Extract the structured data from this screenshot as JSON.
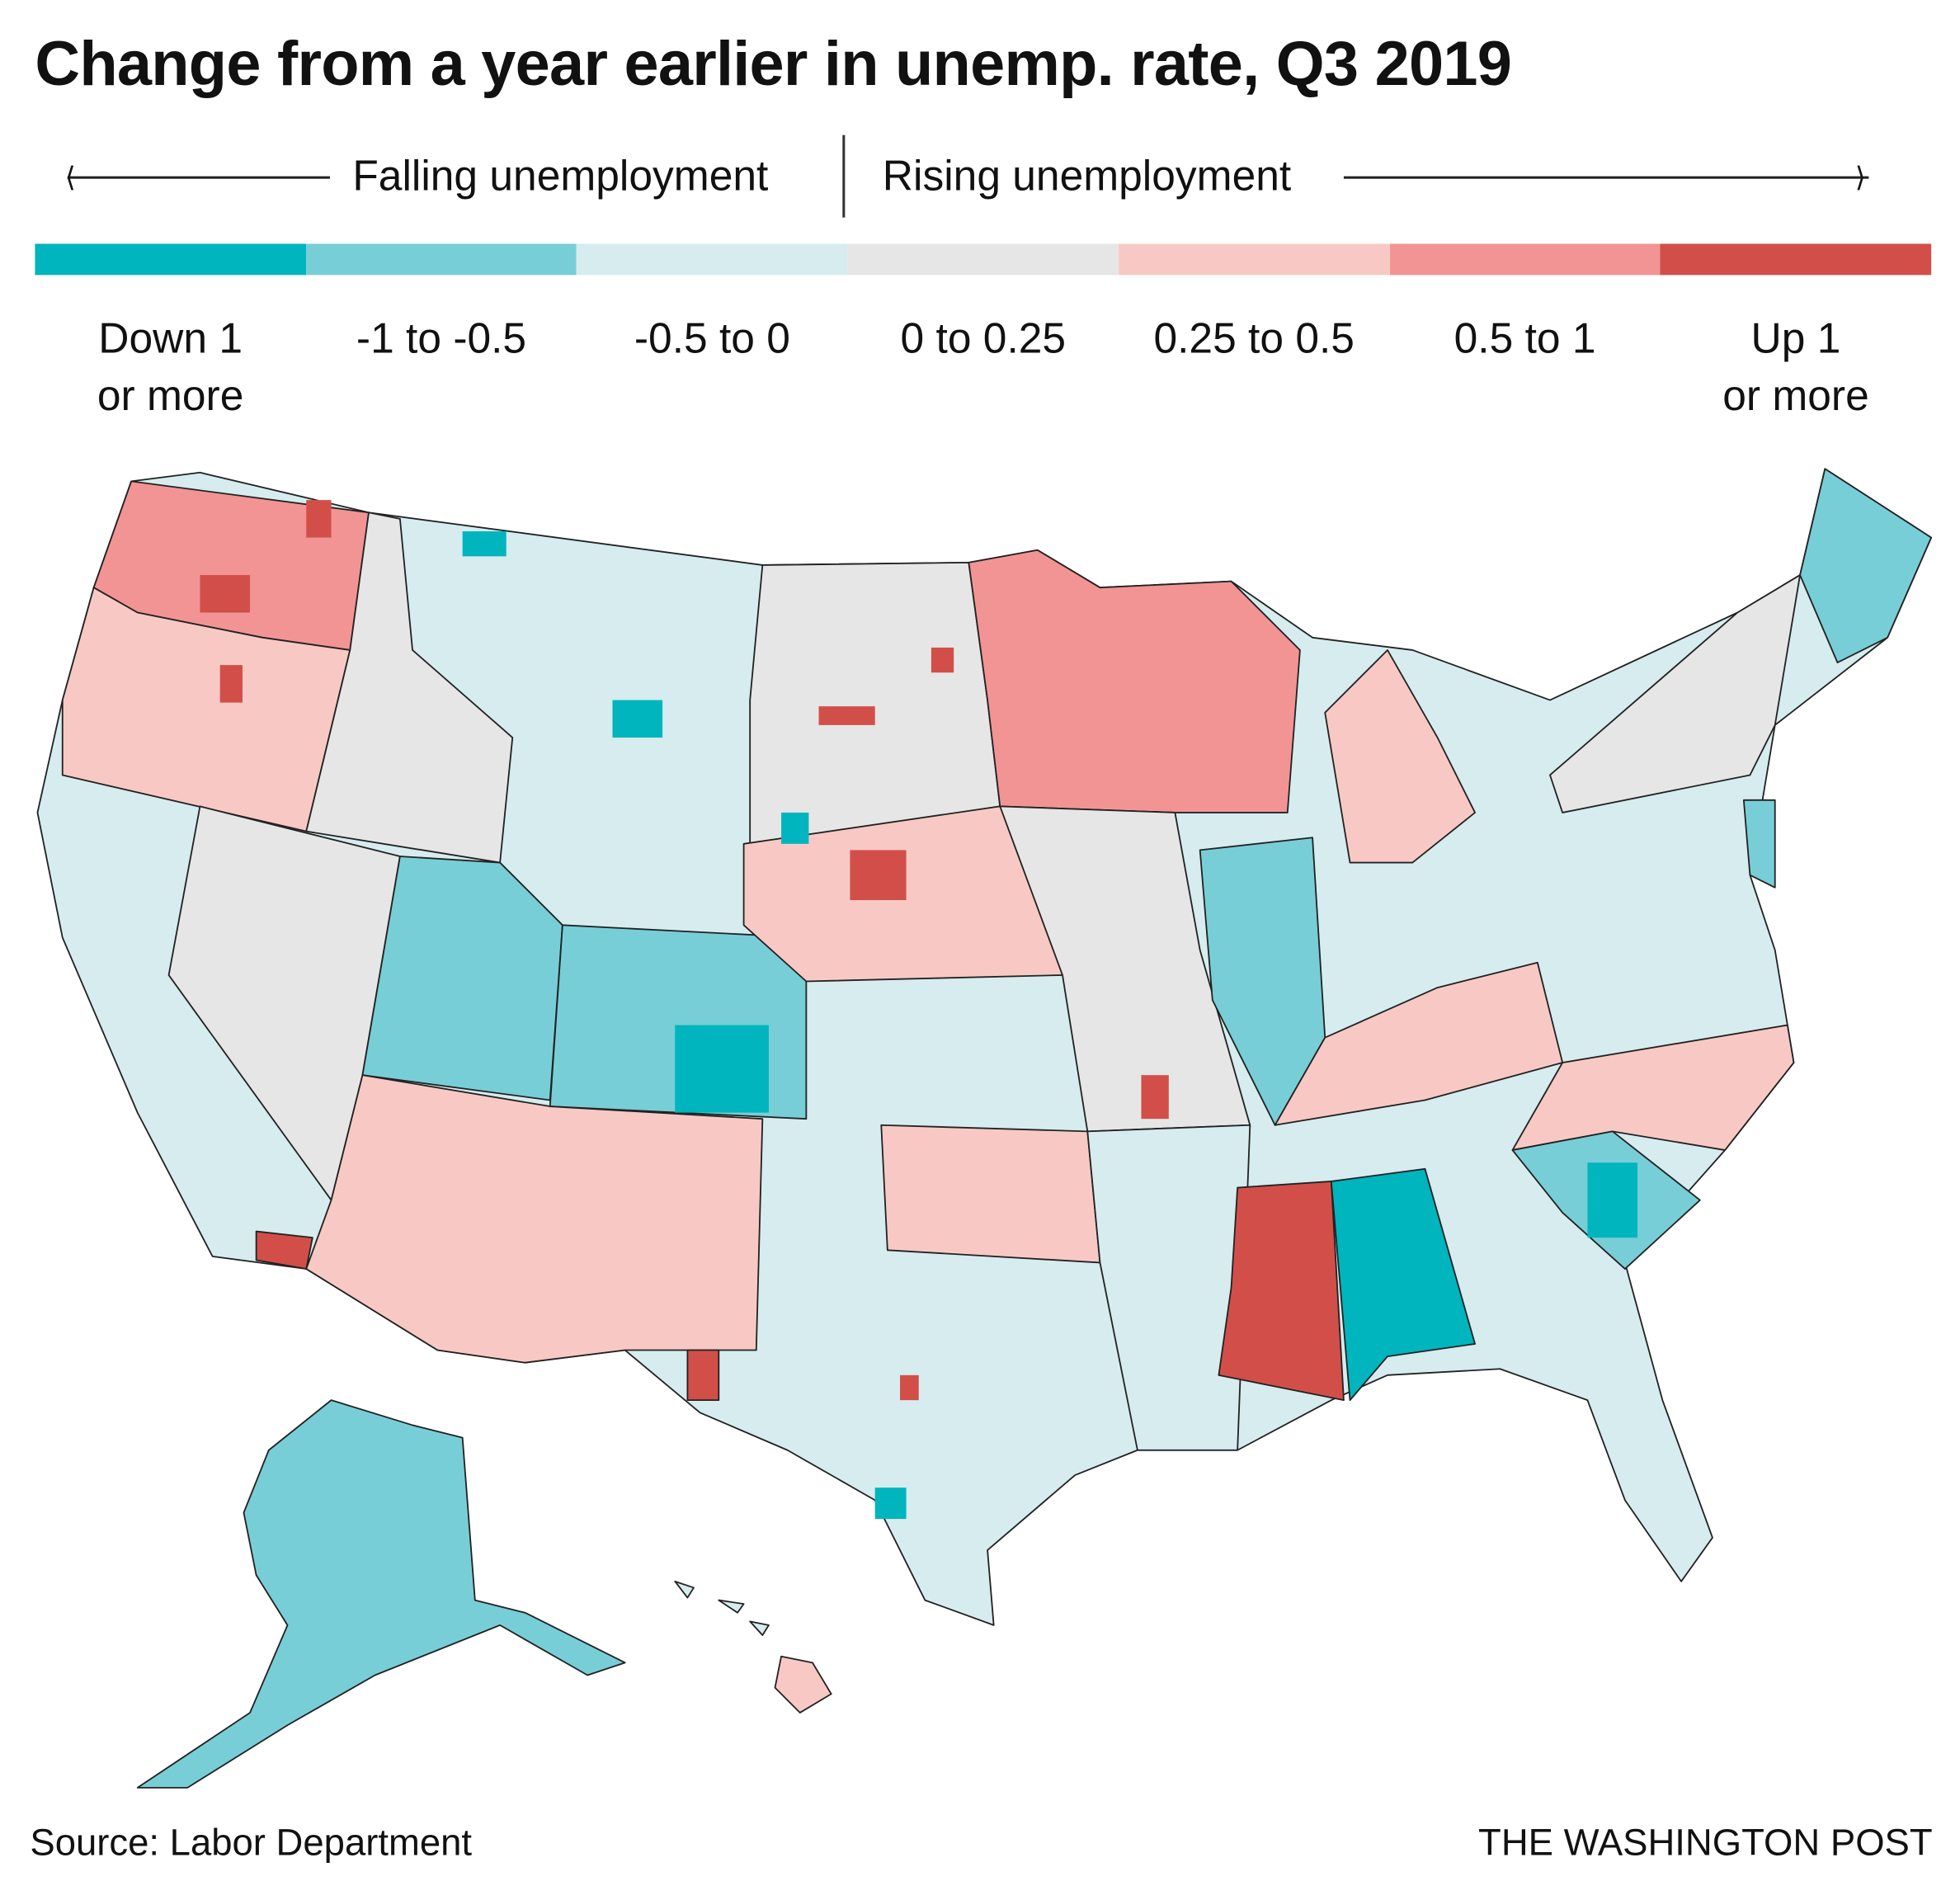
{
  "title": "Change from a year earlier in unemp. rate, Q3 2019",
  "direction": {
    "falling": "Falling unemployment",
    "rising": "Rising unemployment"
  },
  "legend": [
    {
      "label": "Down 1 or more",
      "line1": "Down 1",
      "line2": "or more",
      "color": "#00b5bd"
    },
    {
      "label": "-1 to -0.5",
      "line1": "-1 to -0.5",
      "line2": "",
      "color": "#78ced7"
    },
    {
      "label": "-0.5 to 0",
      "line1": "-0.5 to 0",
      "line2": "",
      "color": "#d6ecef"
    },
    {
      "label": "0 to 0.25",
      "line1": "0 to 0.25",
      "line2": "",
      "color": "#e6e6e6"
    },
    {
      "label": "0.25 to 0.5",
      "line1": "0.25 to 0.5",
      "line2": "",
      "color": "#f8c9c4"
    },
    {
      "label": "0.5 to 1",
      "line1": "0.5 to 1",
      "line2": "",
      "color": "#f29494"
    },
    {
      "label": "Up 1 or more",
      "line1": "Up 1",
      "line2": "or more",
      "color": "#d24f49"
    }
  ],
  "source": "Source: Labor Department",
  "credit": "THE WASHINGTON POST"
}
